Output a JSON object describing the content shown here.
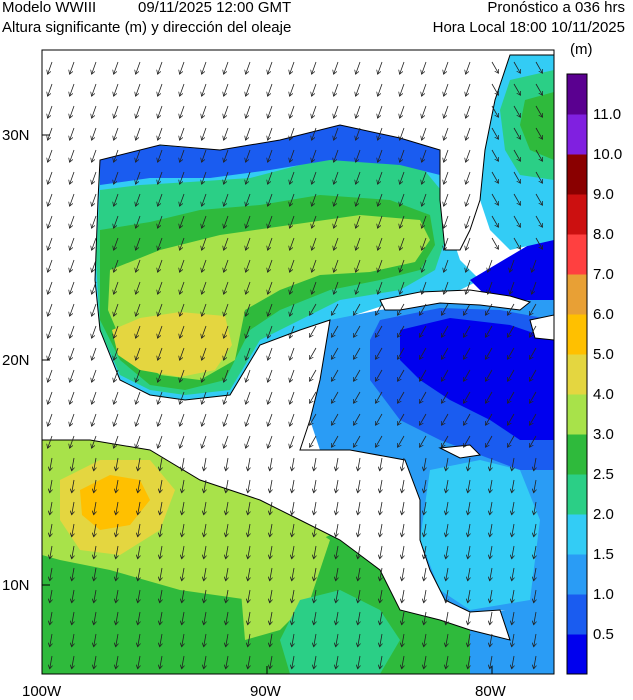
{
  "header": {
    "model": "Modelo WWIII",
    "init_time": "09/11/2025 12:00 GMT",
    "variable": "Altura significante (m) y dirección del oleaje",
    "forecast": "Pronóstico a 036 hrs",
    "local_time": "Hora Local 18:00 10/11/2025"
  },
  "axes": {
    "lat_labels": [
      "30N",
      "20N",
      "10N"
    ],
    "lon_labels": [
      "100W",
      "90W",
      "80W"
    ]
  },
  "colorbar": {
    "unit": "(m)",
    "levels": [
      {
        "label": "0.5",
        "color": "#0000ee"
      },
      {
        "label": "1.0",
        "color": "#1a5cf0"
      },
      {
        "label": "1.5",
        "color": "#2a9cf5"
      },
      {
        "label": "2.0",
        "color": "#33ccf5"
      },
      {
        "label": "2.5",
        "color": "#2bcf86"
      },
      {
        "label": "3.0",
        "color": "#2fba3c"
      },
      {
        "label": "4.0",
        "color": "#a8e24a"
      },
      {
        "label": "5.0",
        "color": "#e4d640"
      },
      {
        "label": "6.0",
        "color": "#ffc000"
      },
      {
        "label": "7.0",
        "color": "#e8a035"
      },
      {
        "label": "8.0",
        "color": "#ff4040"
      },
      {
        "label": "9.0",
        "color": "#cc1010"
      },
      {
        "label": "10.0",
        "color": "#8a0000"
      },
      {
        "label": "11.0",
        "color": "#8020e0"
      },
      {
        "label": "",
        "color": "#5a0090"
      }
    ]
  }
}
